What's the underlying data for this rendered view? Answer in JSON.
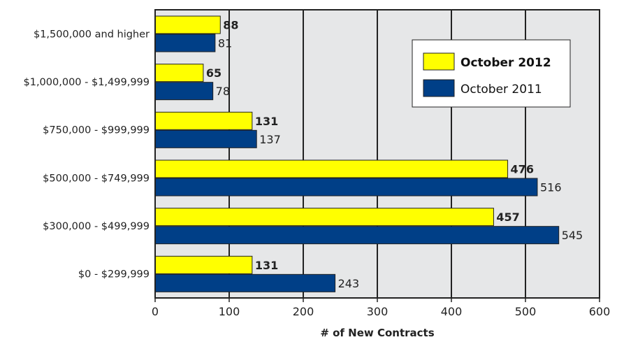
{
  "chart_data": {
    "type": "bar",
    "orientation": "horizontal",
    "categories": [
      "$1,500,000 and higher",
      "$1,000,000 - $1,499,999",
      "$750,000 - $999,999",
      "$500,000 - $749,999",
      "$300,000 - $499,999",
      "$0 - $299,999"
    ],
    "series": [
      {
        "name": "October 2012",
        "values": [
          88,
          65,
          131,
          476,
          457,
          131
        ],
        "color": "#ffff00",
        "label_bold": true
      },
      {
        "name": "October 2011",
        "values": [
          81,
          78,
          137,
          516,
          545,
          243
        ],
        "color": "#003f87",
        "label_bold": false
      }
    ],
    "title": "",
    "xlabel": "# of New Contracts",
    "ylabel": "",
    "xlim": [
      0,
      600
    ],
    "xticks": [
      "0",
      "100",
      "200",
      "300",
      "400",
      "500",
      "600"
    ],
    "grid": true,
    "plot_background": "#e6e7e8",
    "legend_placement": "top-right"
  }
}
